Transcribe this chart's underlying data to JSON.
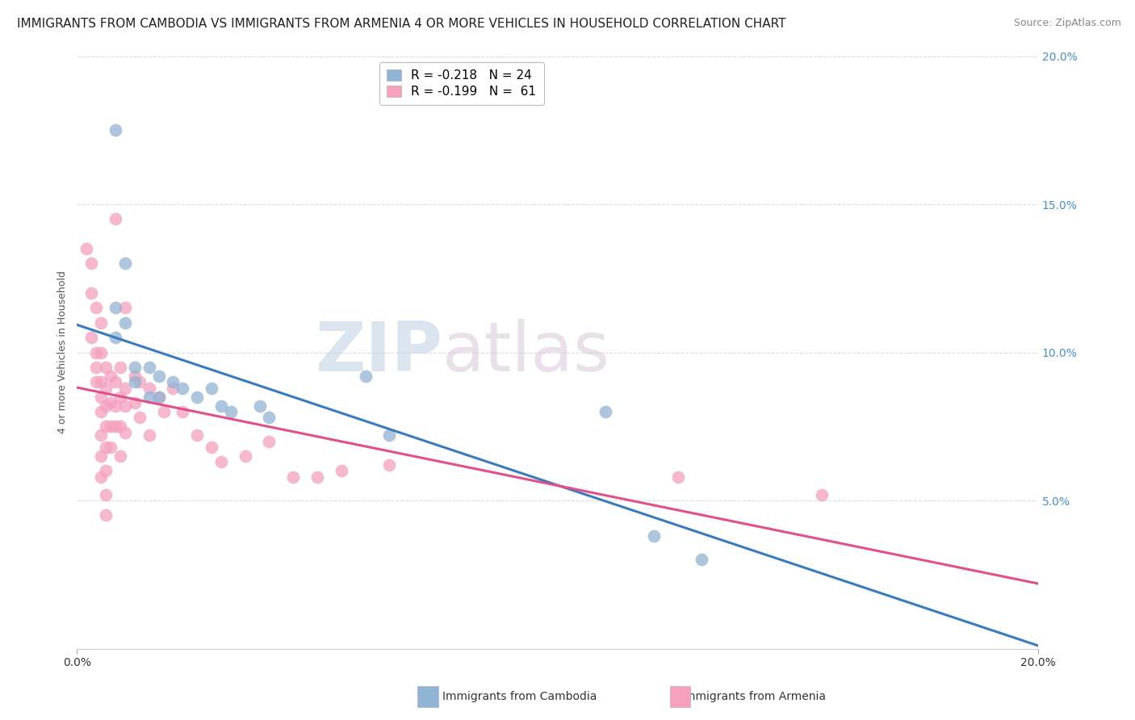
{
  "title": "IMMIGRANTS FROM CAMBODIA VS IMMIGRANTS FROM ARMENIA 4 OR MORE VEHICLES IN HOUSEHOLD CORRELATION CHART",
  "source": "Source: ZipAtlas.com",
  "ylabel": "4 or more Vehicles in Household",
  "xlim": [
    0.0,
    0.2
  ],
  "ylim": [
    0.0,
    0.2
  ],
  "watermark": "ZIPatlas",
  "cambodia_color": "#92b4d4",
  "cambodia_line_color": "#3a7abf",
  "armenia_color": "#f4a0be",
  "armenia_line_color": "#e0508a",
  "legend_label_cambodia": "R = -0.218   N = 24",
  "legend_label_armenia": "R = -0.199   N =  61",
  "bottom_label_cambodia": "Immigrants from Cambodia",
  "bottom_label_armenia": "Immigrants from Armenia",
  "ytick_vals": [
    0.05,
    0.1,
    0.15,
    0.2
  ],
  "ytick_labels": [
    "5.0%",
    "10.0%",
    "15.0%",
    "20.0%"
  ],
  "xtick_vals": [
    0.0,
    0.2
  ],
  "xtick_labels": [
    "0.0%",
    "20.0%"
  ],
  "title_fontsize": 11,
  "axis_label_fontsize": 9,
  "tick_fontsize": 10,
  "source_fontsize": 9,
  "legend_fontsize": 11,
  "background_color": "#ffffff",
  "grid_color": "#dddddd",
  "cambodia_scatter": [
    [
      0.008,
      0.175
    ],
    [
      0.008,
      0.115
    ],
    [
      0.008,
      0.105
    ],
    [
      0.01,
      0.13
    ],
    [
      0.01,
      0.11
    ],
    [
      0.012,
      0.095
    ],
    [
      0.012,
      0.09
    ],
    [
      0.015,
      0.095
    ],
    [
      0.015,
      0.085
    ],
    [
      0.017,
      0.092
    ],
    [
      0.017,
      0.085
    ],
    [
      0.02,
      0.09
    ],
    [
      0.022,
      0.088
    ],
    [
      0.025,
      0.085
    ],
    [
      0.028,
      0.088
    ],
    [
      0.03,
      0.082
    ],
    [
      0.032,
      0.08
    ],
    [
      0.038,
      0.082
    ],
    [
      0.04,
      0.078
    ],
    [
      0.06,
      0.092
    ],
    [
      0.065,
      0.072
    ],
    [
      0.11,
      0.08
    ],
    [
      0.12,
      0.038
    ],
    [
      0.13,
      0.03
    ]
  ],
  "armenia_scatter": [
    [
      0.002,
      0.135
    ],
    [
      0.003,
      0.13
    ],
    [
      0.003,
      0.12
    ],
    [
      0.003,
      0.105
    ],
    [
      0.004,
      0.115
    ],
    [
      0.004,
      0.1
    ],
    [
      0.004,
      0.095
    ],
    [
      0.004,
      0.09
    ],
    [
      0.005,
      0.11
    ],
    [
      0.005,
      0.1
    ],
    [
      0.005,
      0.09
    ],
    [
      0.005,
      0.085
    ],
    [
      0.005,
      0.08
    ],
    [
      0.005,
      0.072
    ],
    [
      0.005,
      0.065
    ],
    [
      0.005,
      0.058
    ],
    [
      0.006,
      0.095
    ],
    [
      0.006,
      0.088
    ],
    [
      0.006,
      0.082
    ],
    [
      0.006,
      0.075
    ],
    [
      0.006,
      0.068
    ],
    [
      0.006,
      0.06
    ],
    [
      0.006,
      0.052
    ],
    [
      0.006,
      0.045
    ],
    [
      0.007,
      0.092
    ],
    [
      0.007,
      0.083
    ],
    [
      0.007,
      0.075
    ],
    [
      0.007,
      0.068
    ],
    [
      0.008,
      0.145
    ],
    [
      0.008,
      0.09
    ],
    [
      0.008,
      0.082
    ],
    [
      0.008,
      0.075
    ],
    [
      0.009,
      0.095
    ],
    [
      0.009,
      0.085
    ],
    [
      0.009,
      0.075
    ],
    [
      0.009,
      0.065
    ],
    [
      0.01,
      0.115
    ],
    [
      0.01,
      0.088
    ],
    [
      0.01,
      0.082
    ],
    [
      0.01,
      0.073
    ],
    [
      0.012,
      0.092
    ],
    [
      0.012,
      0.083
    ],
    [
      0.013,
      0.09
    ],
    [
      0.013,
      0.078
    ],
    [
      0.015,
      0.088
    ],
    [
      0.015,
      0.072
    ],
    [
      0.017,
      0.085
    ],
    [
      0.018,
      0.08
    ],
    [
      0.02,
      0.088
    ],
    [
      0.022,
      0.08
    ],
    [
      0.025,
      0.072
    ],
    [
      0.028,
      0.068
    ],
    [
      0.03,
      0.063
    ],
    [
      0.035,
      0.065
    ],
    [
      0.04,
      0.07
    ],
    [
      0.045,
      0.058
    ],
    [
      0.05,
      0.058
    ],
    [
      0.055,
      0.06
    ],
    [
      0.065,
      0.062
    ],
    [
      0.125,
      0.058
    ],
    [
      0.155,
      0.052
    ]
  ]
}
